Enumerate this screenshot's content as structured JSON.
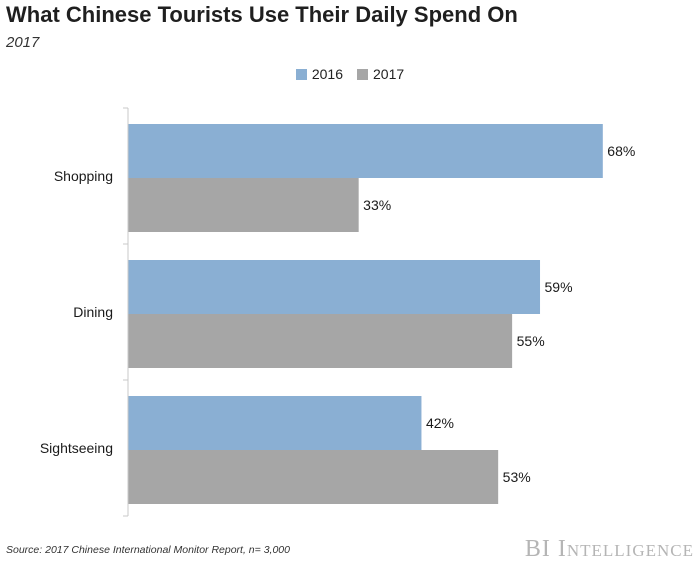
{
  "title": "What Chinese Tourists Use Their Daily Spend On",
  "subtitle": "2017",
  "source": "Source: 2017 Chinese International Monitor Report, n= 3,000",
  "brand": "BI Intelligence",
  "colors": {
    "series_2016": "#8aafd3",
    "series_2017": "#a6a6a6",
    "axis": "#c8c8c8"
  },
  "chart_data": {
    "type": "bar",
    "orientation": "horizontal",
    "categories": [
      "Shopping",
      "Dining",
      "Sightseeing"
    ],
    "series": [
      {
        "name": "2016",
        "values": [
          68,
          59,
          42
        ],
        "labels": [
          "68%",
          "59%",
          "42%"
        ]
      },
      {
        "name": "2017",
        "values": [
          33,
          55,
          53
        ],
        "labels": [
          "33%",
          "55%",
          "53%"
        ]
      }
    ],
    "unit": "%",
    "xlim": [
      0,
      100
    ],
    "grid": false,
    "legend": "top-center",
    "title": "What Chinese Tourists Use Their Daily Spend On",
    "subtitle": "2017"
  }
}
